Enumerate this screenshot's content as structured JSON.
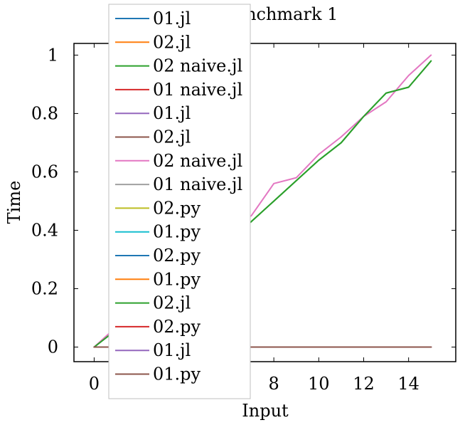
{
  "chart_data": {
    "type": "line",
    "title": "6 - Benchmark 1",
    "xlabel": "Input",
    "ylabel": "Time",
    "xlim": [
      -0.9,
      16.1
    ],
    "ylim": [
      -0.05,
      1.04
    ],
    "x_ticks": [
      0,
      2,
      4,
      6,
      8,
      10,
      12,
      14
    ],
    "y_ticks": [
      0,
      0.2,
      0.4,
      0.6,
      0.8,
      1
    ],
    "x_tick_labels": [
      "0",
      "2",
      "4",
      "6",
      "8",
      "10",
      "12",
      "14"
    ],
    "y_tick_labels": [
      "0",
      "0.2",
      "0.4",
      "0.6",
      "0.8",
      "1"
    ],
    "grid": false,
    "legend_position": "top-left",
    "x": [
      0,
      1,
      2,
      3,
      4,
      5,
      6,
      7,
      8,
      9,
      10,
      11,
      12,
      13,
      14,
      15
    ],
    "series": [
      {
        "name": "01.jl",
        "color": "#1f77b4",
        "values": [
          0,
          0,
          0,
          0,
          0,
          0,
          0,
          0,
          0,
          0,
          0,
          0,
          0,
          0,
          0,
          0
        ]
      },
      {
        "name": "02.jl",
        "color": "#ff7f0e",
        "values": [
          0,
          0,
          0,
          0,
          0,
          0,
          0,
          0,
          0,
          0,
          0,
          0,
          0,
          0,
          0,
          0
        ]
      },
      {
        "name": "02 naive.jl",
        "color": "#2ca02c",
        "values": [
          0,
          0.06,
          0.12,
          0.18,
          0.25,
          0.31,
          0.37,
          0.43,
          0.5,
          0.57,
          0.64,
          0.7,
          0.79,
          0.87,
          0.89,
          0.98
        ]
      },
      {
        "name": "01 naive.jl",
        "color": "#d62728",
        "values": [
          0,
          0,
          0,
          0,
          0,
          0,
          0,
          0,
          0,
          0,
          0,
          0,
          0,
          0,
          0,
          0
        ]
      },
      {
        "name": "01.jl",
        "color": "#9467bd",
        "values": [
          0,
          0,
          0,
          0,
          0,
          0,
          0,
          0,
          0,
          0,
          0,
          0,
          0,
          0,
          0,
          0
        ]
      },
      {
        "name": "02.jl",
        "color": "#8c564b",
        "values": [
          0,
          0,
          0,
          0,
          0,
          0,
          0,
          0,
          0,
          0,
          0,
          0,
          0,
          0,
          0,
          0
        ]
      },
      {
        "name": "02 naive.jl",
        "color": "#e377c2",
        "values": [
          0,
          0.07,
          0.14,
          0.21,
          0.28,
          0.35,
          0.41,
          0.45,
          0.56,
          0.58,
          0.66,
          0.72,
          0.79,
          0.84,
          0.93,
          1.0
        ]
      },
      {
        "name": "01 naive.jl",
        "color": "#a0a0a0",
        "values": [
          0,
          0,
          0,
          0,
          0,
          0,
          0,
          0,
          0,
          0,
          0,
          0,
          0,
          0,
          0,
          0
        ]
      },
      {
        "name": "02.py",
        "color": "#bcbd22",
        "values": [
          0,
          0,
          0,
          0,
          0,
          0,
          0,
          0,
          0,
          0,
          0,
          0,
          0,
          0,
          0,
          0
        ]
      },
      {
        "name": "01.py",
        "color": "#17becf",
        "values": [
          0,
          0,
          0,
          0,
          0,
          0,
          0,
          0,
          0,
          0,
          0,
          0,
          0,
          0,
          0,
          0
        ]
      },
      {
        "name": "02.py",
        "color": "#1f77b4",
        "values": [
          0,
          0,
          0,
          0,
          0,
          0,
          0,
          0,
          0,
          0,
          0,
          0,
          0,
          0,
          0,
          0
        ]
      },
      {
        "name": "01.py",
        "color": "#ff7f0e",
        "values": [
          0,
          0,
          0,
          0,
          0,
          0,
          0,
          0,
          0,
          0,
          0,
          0,
          0,
          0,
          0,
          0
        ]
      },
      {
        "name": "02.jl",
        "color": "#2ca02c",
        "values": [
          0,
          0.06,
          0.12,
          0.18,
          0.25,
          0.31,
          0.37,
          0.43,
          0.5,
          0.57,
          0.64,
          0.7,
          0.79,
          0.87,
          0.89,
          0.98
        ]
      },
      {
        "name": "02.py",
        "color": "#d62728",
        "values": [
          0,
          0,
          0,
          0,
          0,
          0,
          0,
          0,
          0,
          0,
          0,
          0,
          0,
          0,
          0,
          0
        ]
      },
      {
        "name": "01.jl",
        "color": "#9467bd",
        "values": [
          0,
          0,
          0,
          0,
          0,
          0,
          0,
          0,
          0,
          0,
          0,
          0,
          0,
          0,
          0,
          0
        ]
      },
      {
        "name": "01.py",
        "color": "#8c564b",
        "values": [
          0,
          0,
          0,
          0,
          0,
          0,
          0,
          0,
          0,
          0,
          0,
          0,
          0,
          0,
          0,
          0
        ]
      }
    ]
  }
}
